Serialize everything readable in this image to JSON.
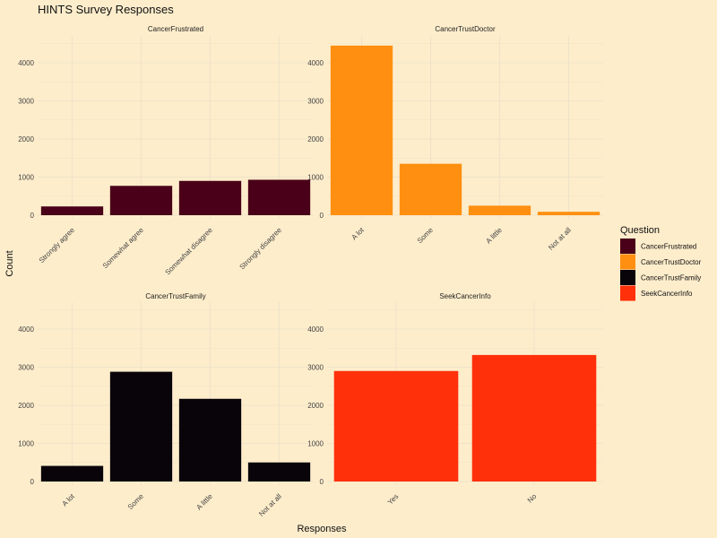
{
  "chart_data": {
    "type": "bar",
    "title": "HINTS Survey Responses",
    "xlabel": "Responses",
    "ylabel": "Count",
    "ylim": [
      0,
      4700
    ],
    "yticks": [
      0,
      1000,
      2000,
      3000,
      4000
    ],
    "grid": true,
    "legend": {
      "title": "Question",
      "placement": "right",
      "entries": [
        {
          "name": "CancerFrustrated",
          "color": "#4A0018"
        },
        {
          "name": "CancerTrustDoctor",
          "color": "#FF8F10"
        },
        {
          "name": "CancerTrustFamily",
          "color": "#08040A"
        },
        {
          "name": "SeekCancerInfo",
          "color": "#FF300A"
        }
      ]
    },
    "facets": [
      {
        "name": "CancerFrustrated",
        "color": "#4A0018",
        "categories": [
          "Strongly agree",
          "Somewhat agree",
          "Somewhat disagree",
          "Strongly disagree"
        ],
        "values": [
          230,
          770,
          900,
          930
        ]
      },
      {
        "name": "CancerTrustDoctor",
        "color": "#FF8F10",
        "categories": [
          "A lot",
          "Some",
          "A little",
          "Not at all"
        ],
        "values": [
          4450,
          1350,
          250,
          90
        ]
      },
      {
        "name": "CancerTrustFamily",
        "color": "#08040A",
        "categories": [
          "A lot",
          "Some",
          "A little",
          "Not at all"
        ],
        "values": [
          410,
          2880,
          2170,
          500
        ]
      },
      {
        "name": "SeekCancerInfo",
        "color": "#FF300A",
        "categories": [
          "Yes",
          "No"
        ],
        "values": [
          2900,
          3320
        ]
      }
    ]
  }
}
